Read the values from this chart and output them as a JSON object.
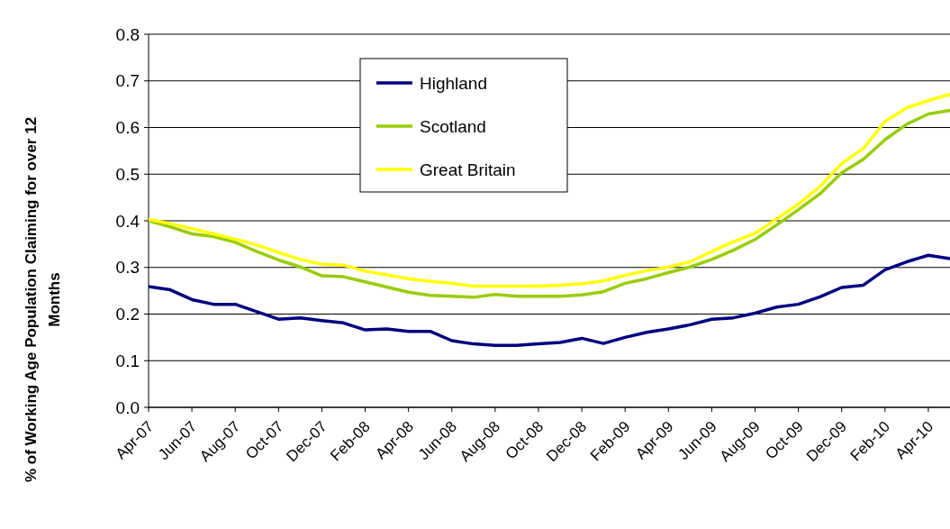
{
  "chart_data": {
    "type": "line",
    "ylabel": "% of Working Age Population Claiming for over 12 Months",
    "categories": [
      "Apr-07",
      null,
      "Jun-07",
      null,
      "Aug-07",
      null,
      "Oct-07",
      null,
      "Dec-07",
      null,
      "Feb-08",
      null,
      "Apr-08",
      null,
      "Jun-08",
      null,
      "Aug-08",
      null,
      "Oct-08",
      null,
      "Dec-08",
      null,
      "Feb-09",
      null,
      "Apr-09",
      null,
      "Jun-09",
      null,
      "Aug-09",
      null,
      "Oct-09",
      null,
      "Dec-09",
      null,
      "Feb-10",
      null,
      "Apr-10",
      null
    ],
    "series": [
      {
        "name": "Highland",
        "color": "#000080",
        "values": [
          0.259,
          0.252,
          0.231,
          0.221,
          0.221,
          0.205,
          0.189,
          0.192,
          0.186,
          0.181,
          0.166,
          0.168,
          0.163,
          0.163,
          0.143,
          0.136,
          0.133,
          0.133,
          0.136,
          0.139,
          0.148,
          0.137,
          0.15,
          0.161,
          0.168,
          0.177,
          0.189,
          0.192,
          0.202,
          0.215,
          0.221,
          0.237,
          0.257,
          0.262,
          0.295,
          0.312,
          0.326,
          0.319
        ]
      },
      {
        "name": "Scotland",
        "color": "#99cc00",
        "values": [
          0.4,
          0.387,
          0.372,
          0.366,
          0.354,
          0.334,
          0.316,
          0.301,
          0.282,
          0.28,
          0.269,
          0.258,
          0.247,
          0.24,
          0.238,
          0.236,
          0.242,
          0.238,
          0.238,
          0.238,
          0.241,
          0.248,
          0.266,
          0.276,
          0.289,
          0.301,
          0.317,
          0.337,
          0.36,
          0.391,
          0.424,
          0.458,
          0.503,
          0.532,
          0.574,
          0.607,
          0.629,
          0.637
        ]
      },
      {
        "name": "Great Britain",
        "color": "#ffff00",
        "values": [
          0.403,
          0.394,
          0.383,
          0.372,
          0.361,
          0.348,
          0.332,
          0.317,
          0.307,
          0.305,
          0.292,
          0.284,
          0.276,
          0.27,
          0.266,
          0.26,
          0.26,
          0.26,
          0.26,
          0.262,
          0.265,
          0.271,
          0.283,
          0.293,
          0.301,
          0.312,
          0.334,
          0.355,
          0.373,
          0.404,
          0.436,
          0.473,
          0.523,
          0.555,
          0.613,
          0.642,
          0.658,
          0.671
        ]
      }
    ],
    "ylim": [
      0,
      0.8
    ],
    "yticks": [
      {
        "value": 0,
        "label": "0.0"
      },
      {
        "value": 0.1,
        "label": "0.1"
      },
      {
        "value": 0.2,
        "label": "0.2"
      },
      {
        "value": 0.3,
        "label": "0.3"
      },
      {
        "value": 0.4,
        "label": "0.4"
      },
      {
        "value": 0.5,
        "label": "0.5"
      },
      {
        "value": 0.6,
        "label": "0.6"
      },
      {
        "value": 0.7,
        "label": "0.7"
      },
      {
        "value": 0.8,
        "label": "0.8"
      }
    ],
    "grid": "y",
    "legend": "top",
    "marker": "none",
    "line_style": "solid"
  }
}
